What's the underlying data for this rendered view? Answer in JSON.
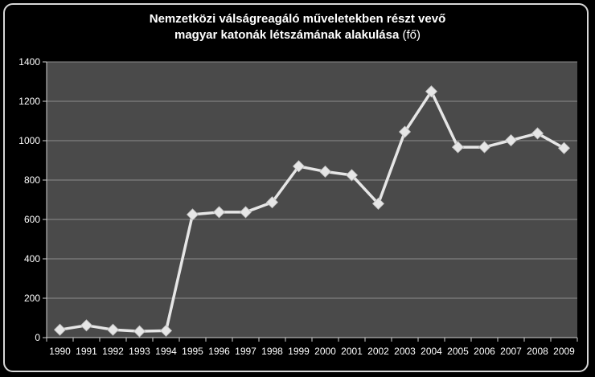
{
  "chart_data": {
    "type": "line",
    "title_line1": "Nemzetközi válságreagáló műveletekben részt vevő",
    "title_line2": "magyar katonák létszámának alakulása",
    "title_unit": "(fő)",
    "xlabel": "",
    "ylabel": "",
    "categories": [
      "1990",
      "1991",
      "1992",
      "1993",
      "1994",
      "1995",
      "1996",
      "1997",
      "1998",
      "1999",
      "2000",
      "2001",
      "2002",
      "2003",
      "2004",
      "2005",
      "2006",
      "2007",
      "2008",
      "2009"
    ],
    "series": [
      {
        "values": [
          40,
          62,
          40,
          32,
          35,
          625,
          637,
          637,
          687,
          870,
          843,
          825,
          680,
          1045,
          1250,
          967,
          967,
          1002,
          1037,
          962
        ]
      }
    ],
    "ylim": [
      0,
      1400
    ],
    "yticks": [
      "0",
      "200",
      "400",
      "600",
      "800",
      "1000",
      "1200",
      "1400"
    ],
    "grid": true,
    "legend": "none",
    "colors": {
      "background": "#000000",
      "plot_area": "#4a4a4a",
      "gridline": "#8c8c8c",
      "line": "#e6e6e6",
      "marker": "#e6e6e6",
      "text": "#ffffff"
    }
  }
}
